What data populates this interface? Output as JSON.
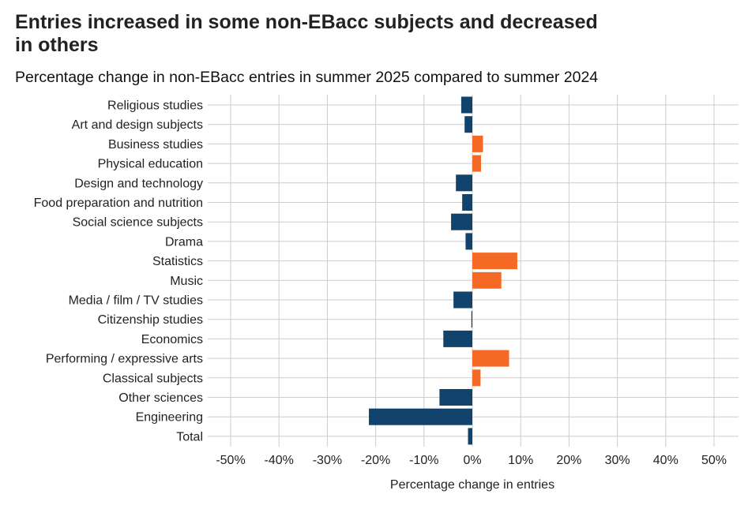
{
  "colors": {
    "decrease": "#12436d",
    "increase": "#f46a25",
    "grid": "#cccccc",
    "text": "#222222"
  },
  "chart_data": {
    "type": "bar",
    "orientation": "horizontal",
    "title": "Entries increased in some non-EBacc subjects and decreased in others",
    "subtitle": "Percentage change in non-EBacc entries in summer 2025 compared to summer 2024",
    "xlabel": "Percentage change in entries",
    "ylabel": "",
    "xlim": [
      -50,
      50
    ],
    "x_ticks": [
      -50,
      -40,
      -30,
      -20,
      -10,
      0,
      10,
      20,
      30,
      40,
      50
    ],
    "x_tick_labels": [
      "-50%",
      "-40%",
      "-30%",
      "-20%",
      "-10%",
      "0%",
      "10%",
      "20%",
      "30%",
      "40%",
      "50%"
    ],
    "grid": true,
    "legend": "none",
    "categories": [
      "Religious studies",
      "Art and design subjects",
      "Business studies",
      "Physical education",
      "Design and technology",
      "Food preparation and nutrition",
      "Social science subjects",
      "Drama",
      "Statistics",
      "Music",
      "Media / film / TV studies",
      "Citizenship studies",
      "Economics",
      "Performing / expressive arts",
      "Classical subjects",
      "Other sciences",
      "Engineering",
      "Total"
    ],
    "values": [
      -2.3,
      -1.6,
      2.2,
      1.8,
      -3.4,
      -2.1,
      -4.4,
      -1.4,
      9.3,
      6.0,
      -3.9,
      -0.2,
      -6.0,
      7.6,
      1.7,
      -6.8,
      -21.4,
      -0.9
    ]
  }
}
